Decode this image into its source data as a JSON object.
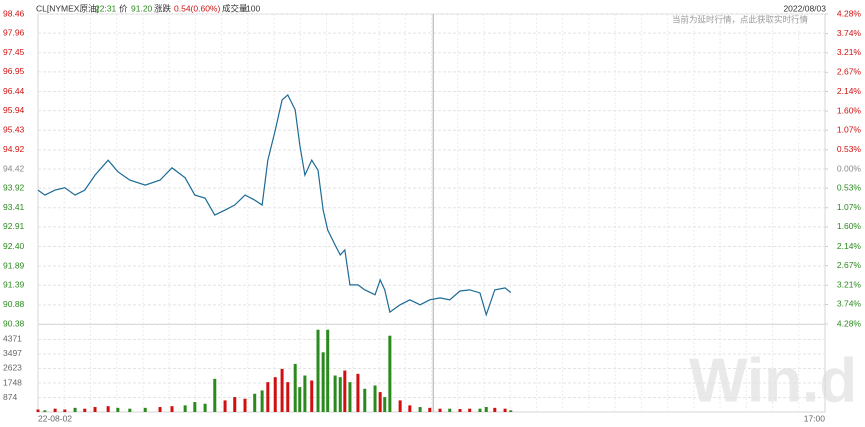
{
  "header": {
    "symbol": "CL[NYMEX原油]",
    "time": "22:31",
    "price_label": "价",
    "price": "91.20",
    "change_label": "涨跌",
    "change": "0.54(0.60%)",
    "volume_label": "成交量",
    "volume": "100",
    "date": "2022/08/03",
    "notice": "当前为延时行情，点此获取实时行情",
    "watermark": "Win.d"
  },
  "chart_data": {
    "type": "line",
    "color": "#1c6b96",
    "grid": true,
    "up_color": "#d01010",
    "down_color": "#2a8a1e",
    "flat_color": "#888888",
    "x": [
      0,
      12,
      30,
      47,
      65,
      82,
      100,
      123,
      140,
      161,
      188,
      214,
      235,
      258,
      275,
      293,
      310,
      328,
      345,
      363,
      380,
      393,
      403,
      416,
      428,
      438,
      451,
      459,
      468,
      480,
      491,
      500,
      508,
      521,
      530,
      538,
      547,
      561,
      573,
      591,
      600,
      608,
      617,
      635,
      652,
      670,
      687,
      705,
      722,
      740,
      757,
      775,
      786,
      801,
      819,
      829
    ],
    "values": [
      93.87,
      93.74,
      93.87,
      93.93,
      93.74,
      93.87,
      94.26,
      94.65,
      94.35,
      94.13,
      94.0,
      94.13,
      94.45,
      94.19,
      93.74,
      93.66,
      93.22,
      93.35,
      93.48,
      93.74,
      93.61,
      93.48,
      94.65,
      95.43,
      96.22,
      96.35,
      95.96,
      95.05,
      94.26,
      94.65,
      94.39,
      93.35,
      92.83,
      92.44,
      92.18,
      92.31,
      91.4,
      91.4,
      91.27,
      91.14,
      91.53,
      91.27,
      90.69,
      90.88,
      91.01,
      90.88,
      91.01,
      91.06,
      91.01,
      91.24,
      91.27,
      91.19,
      90.62,
      91.27,
      91.32,
      91.2
    ],
    "xlim": [
      0,
      1380
    ],
    "xticks": [
      {
        "value": 0,
        "label": "22-08-02"
      },
      {
        "value": 1380,
        "label": "17:00"
      }
    ],
    "divider_x": 693,
    "ylim": [
      90.38,
      98.46
    ],
    "yticks": [
      98.46,
      97.96,
      97.45,
      96.95,
      96.44,
      95.94,
      95.43,
      94.92,
      94.42,
      93.92,
      93.41,
      92.91,
      {
        "value": 92.4,
        "label": "92.40"
      },
      91.89,
      91.39,
      90.88,
      90.38
    ],
    "y2lim": [
      -4.28,
      4.28
    ],
    "y2ticks": [
      {
        "value": 4.28,
        "label": "4.28%"
      },
      {
        "value": 3.74,
        "label": "3.74%"
      },
      {
        "value": 3.21,
        "label": "3.21%"
      },
      {
        "value": 2.67,
        "label": "2.67%"
      },
      {
        "value": 2.14,
        "label": "2.14%"
      },
      {
        "value": 1.6,
        "label": "1.60%"
      },
      {
        "value": 1.07,
        "label": "1.07%"
      },
      {
        "value": 0.53,
        "label": "0.53%"
      },
      {
        "value": 0,
        "label": "0.00%"
      },
      {
        "value": -0.53,
        "label": "0.53%"
      },
      {
        "value": -1.07,
        "label": "1.07%"
      },
      {
        "value": -1.6,
        "label": "1.60%"
      },
      {
        "value": -2.14,
        "label": "2.14%"
      },
      {
        "value": -2.67,
        "label": "2.67%"
      },
      {
        "value": -3.21,
        "label": "3.21%"
      },
      {
        "value": -3.74,
        "label": "3.74%"
      },
      {
        "value": -4.28,
        "label": "4.28%"
      }
    ],
    "volume": {
      "type": "bar",
      "values": [
        150,
        100,
        200,
        150,
        250,
        200,
        300,
        350,
        250,
        200,
        250,
        300,
        350,
        400,
        600,
        500,
        2000,
        700,
        900,
        800,
        1100,
        1300,
        1800,
        2100,
        2600,
        1800,
        2900,
        1500,
        2200,
        1900,
        4960,
        3600,
        4960,
        2200,
        2100,
        2500,
        1800,
        2300,
        1400,
        1600,
        1200,
        900,
        4600,
        700,
        400,
        300,
        250,
        200,
        200,
        180,
        200,
        200,
        300,
        250,
        200,
        100
      ],
      "ylim": [
        0,
        5245
      ],
      "yticks": [
        4371,
        3497,
        2623,
        1748,
        874
      ]
    }
  }
}
